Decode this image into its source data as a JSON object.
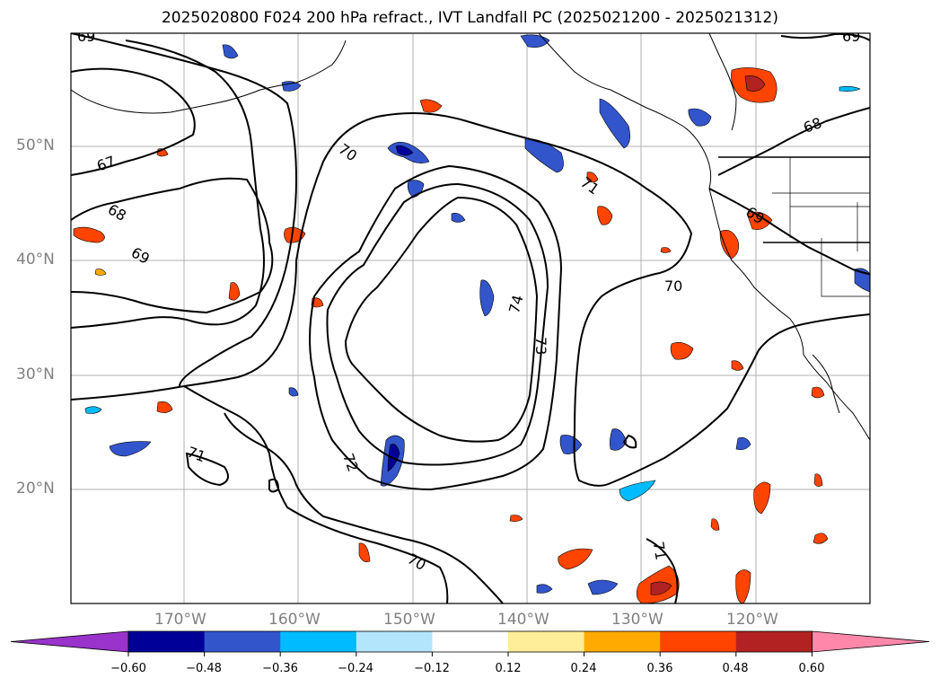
{
  "title": "2025020800 F024 200 hPa refract., IVT Landfall PC (2025021200 - 2025021312)",
  "map": {
    "lat_labels": [
      "50°N",
      "40°N",
      "30°N",
      "20°N"
    ],
    "lon_labels": [
      "170°W",
      "160°W",
      "150°W",
      "140°W",
      "130°W",
      "120°W"
    ],
    "contour_labels": [
      "69",
      "67",
      "68",
      "69",
      "70",
      "71",
      "70",
      "74",
      "73",
      "72",
      "71",
      "70",
      "68",
      "69",
      "71",
      "69"
    ]
  },
  "colorbar": {
    "ticks": [
      "−0.60",
      "−0.48",
      "−0.36",
      "−0.24",
      "−0.12",
      "0.12",
      "0.24",
      "0.36",
      "0.48",
      "0.60"
    ],
    "colors": [
      "#9933cc",
      "#000099",
      "#3355cc",
      "#00bbff",
      "#b3e5fc",
      "#ffffff",
      "#ffee99",
      "#ffaa00",
      "#ff4400",
      "#b22222",
      "#ff88aa"
    ]
  }
}
